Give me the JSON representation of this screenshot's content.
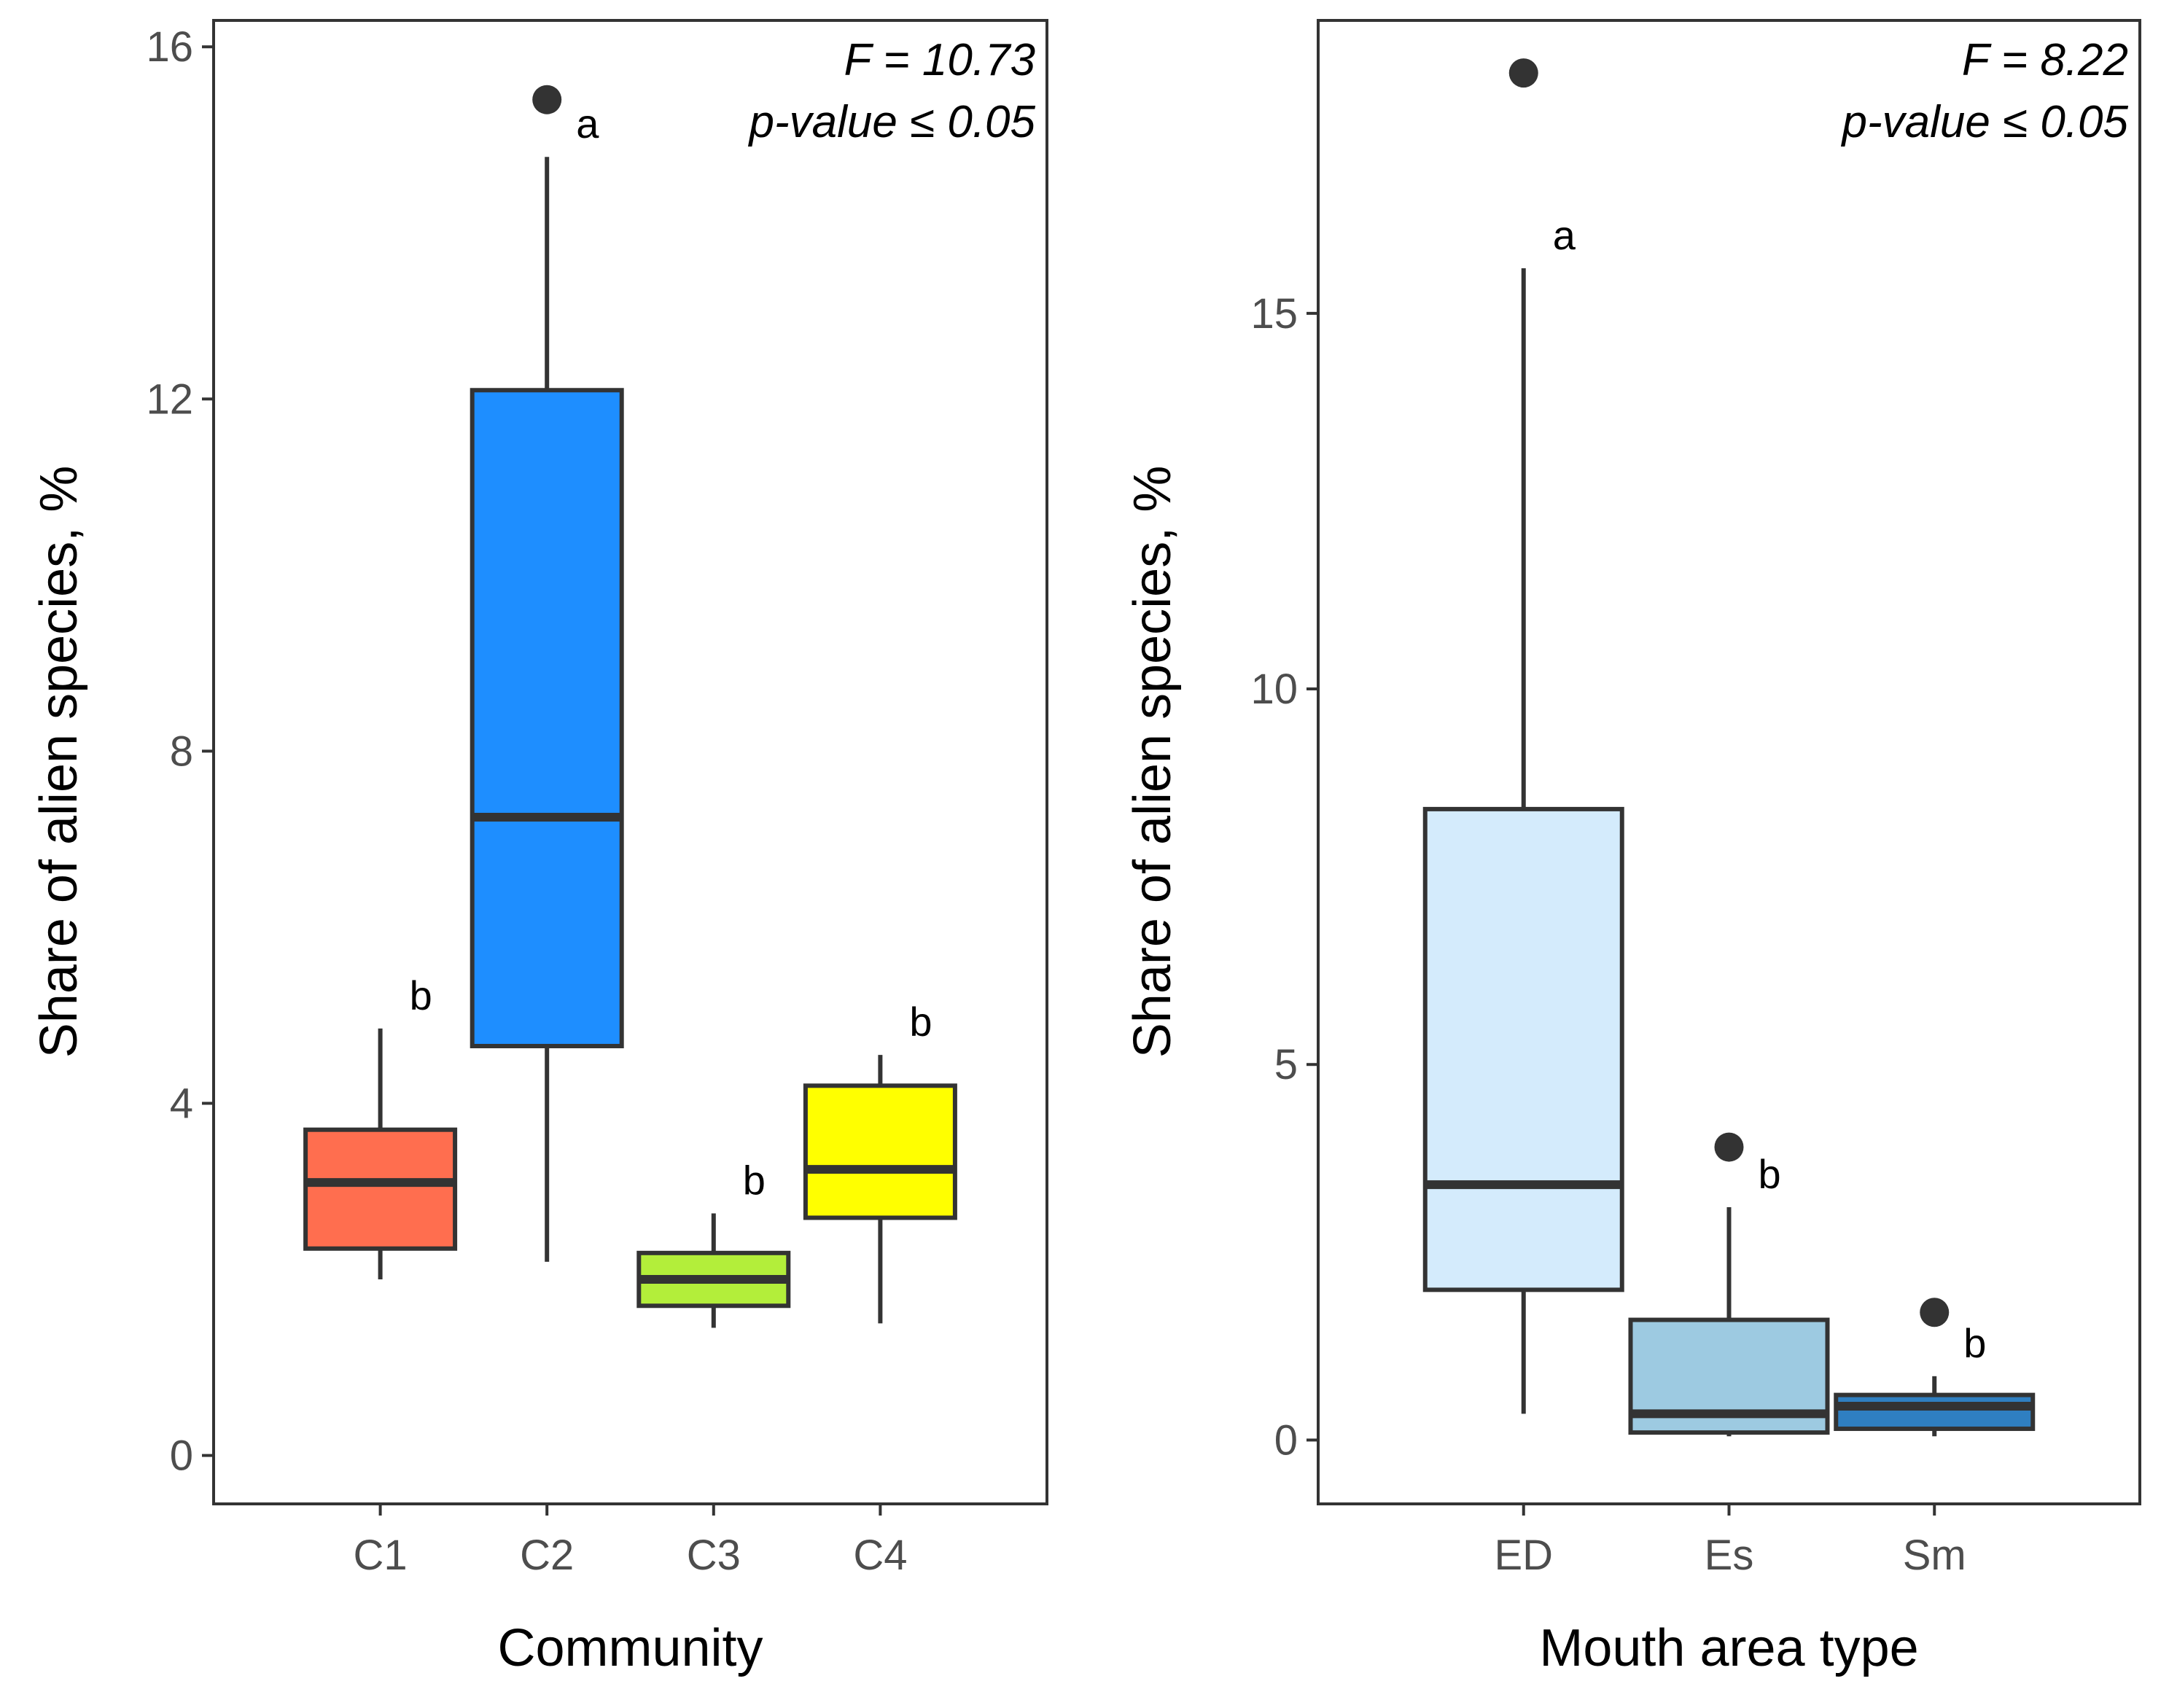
{
  "chart_data": [
    {
      "type": "boxplot",
      "xlabel": "Community",
      "ylabel": "Share of alien species, %",
      "ylim": [
        -0.55,
        16.3
      ],
      "yticks": [
        0,
        4,
        8,
        12,
        16
      ],
      "annotation": {
        "line1": "F = 10.73",
        "line2": "p-value ≤ 0.05"
      },
      "grid": false,
      "categories": [
        "C1",
        "C2",
        "C3",
        "C4"
      ],
      "boxes": [
        {
          "category": "C1",
          "lower_whisker": 2.0,
          "q1": 2.35,
          "median": 3.1,
          "q3": 3.7,
          "upper_whisker": 4.85,
          "outliers": [],
          "group": "b",
          "color": "#FF6E4F"
        },
        {
          "category": "C2",
          "lower_whisker": 2.2,
          "q1": 4.65,
          "median": 7.25,
          "q3": 12.1,
          "upper_whisker": 14.75,
          "outliers": [
            15.4
          ],
          "group": "a",
          "color": "#1E8EFF"
        },
        {
          "category": "C3",
          "lower_whisker": 1.45,
          "q1": 1.7,
          "median": 2.0,
          "q3": 2.3,
          "upper_whisker": 2.75,
          "outliers": [],
          "group": "b",
          "color": "#B3EE3A"
        },
        {
          "category": "C4",
          "lower_whisker": 1.5,
          "q1": 2.7,
          "median": 3.25,
          "q3": 4.2,
          "upper_whisker": 4.55,
          "outliers": [],
          "group": "b",
          "color": "#FFFF00"
        }
      ]
    },
    {
      "type": "boxplot",
      "xlabel": "Mouth area type",
      "ylabel": "Share of alien species, %",
      "ylim": [
        -0.85,
        18.9
      ],
      "yticks": [
        0,
        5,
        10,
        15
      ],
      "annotation": {
        "line1": "F = 8.22",
        "line2": "p-value ≤ 0.05"
      },
      "grid": false,
      "categories": [
        "ED",
        "Es",
        "Sm"
      ],
      "boxes": [
        {
          "category": "ED",
          "lower_whisker": 0.35,
          "q1": 2.0,
          "median": 3.4,
          "q3": 8.4,
          "upper_whisker": 15.6,
          "outliers": [
            18.2
          ],
          "group": "a",
          "color": "#D4EBFC"
        },
        {
          "category": "Es",
          "lower_whisker": 0.05,
          "q1": 0.1,
          "median": 0.35,
          "q3": 1.6,
          "upper_whisker": 3.1,
          "outliers": [
            3.9
          ],
          "group": "b",
          "color": "#9DCAE1"
        },
        {
          "category": "Sm",
          "lower_whisker": 0.05,
          "q1": 0.15,
          "median": 0.45,
          "q3": 0.6,
          "upper_whisker": 0.85,
          "outliers": [
            1.7
          ],
          "group": "b",
          "color": "#2F7FC1"
        }
      ]
    }
  ]
}
